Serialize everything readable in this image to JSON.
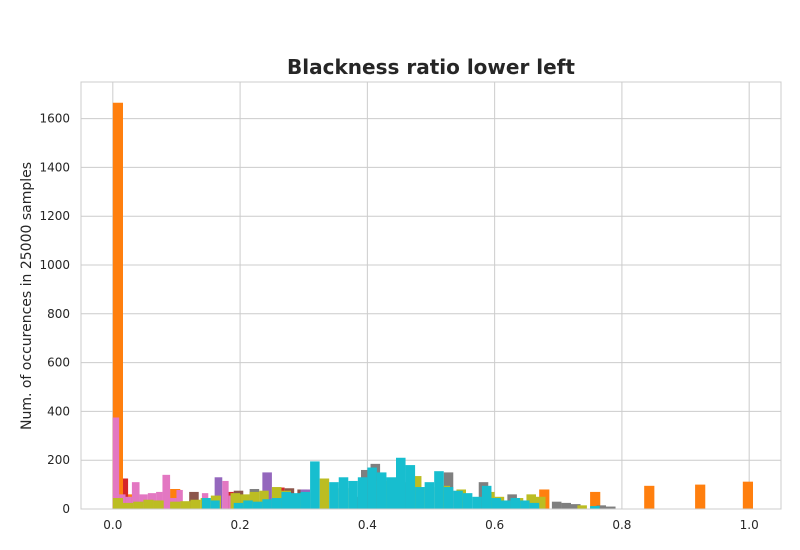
{
  "chart_data": {
    "type": "bar",
    "title": "Blackness ratio lower left",
    "xlabel": "",
    "ylabel": "Num. of occurences in 25000 samples",
    "xlim": [
      -0.05,
      1.05
    ],
    "ylim": [
      0,
      1750
    ],
    "x_ticks": [
      0.0,
      0.2,
      0.4,
      0.6,
      0.8,
      1.0
    ],
    "x_tick_labels": [
      "0.0",
      "0.2",
      "0.4",
      "0.6",
      "0.8",
      "1.0"
    ],
    "y_ticks": [
      0,
      200,
      400,
      600,
      800,
      1000,
      1200,
      1400,
      1600
    ],
    "y_tick_labels": [
      "0",
      "200",
      "400",
      "600",
      "800",
      "1000",
      "1200",
      "1400",
      "1600"
    ],
    "grid": true,
    "series": [
      {
        "name": "orange",
        "color": "#ff7f0e",
        "bins": [
          [
            0.0,
            0.016,
            1665
          ],
          [
            0.016,
            0.032,
            60
          ],
          [
            0.09,
            0.106,
            82
          ],
          [
            0.67,
            0.686,
            80
          ],
          [
            0.75,
            0.766,
            70
          ],
          [
            0.835,
            0.851,
            95
          ],
          [
            0.915,
            0.931,
            100
          ],
          [
            0.99,
            1.006,
            112
          ]
        ]
      },
      {
        "name": "red",
        "color": "#d62728",
        "bins": [
          [
            0.016,
            0.024,
            125
          ],
          [
            0.18,
            0.19,
            70
          ],
          [
            0.26,
            0.27,
            88
          ],
          [
            0.47,
            0.48,
            65
          ]
        ]
      },
      {
        "name": "brown",
        "color": "#8c564b",
        "bins": [
          [
            0.12,
            0.135,
            70
          ],
          [
            0.19,
            0.205,
            75
          ],
          [
            0.27,
            0.285,
            85
          ],
          [
            0.29,
            0.305,
            80
          ]
        ]
      },
      {
        "name": "purple",
        "color": "#9467bd",
        "bins": [
          [
            0.08,
            0.09,
            70
          ],
          [
            0.16,
            0.172,
            130
          ],
          [
            0.235,
            0.25,
            150
          ],
          [
            0.295,
            0.31,
            80
          ]
        ]
      },
      {
        "name": "gray",
        "color": "#7f7f7f",
        "bins": [
          [
            0.215,
            0.23,
            82
          ],
          [
            0.375,
            0.39,
            50
          ],
          [
            0.39,
            0.405,
            160
          ],
          [
            0.405,
            0.42,
            185
          ],
          [
            0.455,
            0.47,
            110
          ],
          [
            0.52,
            0.535,
            150
          ],
          [
            0.575,
            0.59,
            110
          ],
          [
            0.62,
            0.635,
            60
          ],
          [
            0.69,
            0.705,
            30
          ],
          [
            0.705,
            0.72,
            25
          ],
          [
            0.72,
            0.735,
            20
          ],
          [
            0.76,
            0.775,
            15
          ],
          [
            0.775,
            0.79,
            10
          ]
        ]
      },
      {
        "name": "pink",
        "color": "#e377c2",
        "bins": [
          [
            0.0,
            0.01,
            375
          ],
          [
            0.01,
            0.02,
            60
          ],
          [
            0.02,
            0.03,
            50
          ],
          [
            0.03,
            0.042,
            110
          ],
          [
            0.042,
            0.055,
            60
          ],
          [
            0.055,
            0.068,
            65
          ],
          [
            0.068,
            0.078,
            70
          ],
          [
            0.078,
            0.09,
            140
          ],
          [
            0.09,
            0.1,
            45
          ],
          [
            0.1,
            0.11,
            78
          ],
          [
            0.14,
            0.15,
            65
          ],
          [
            0.172,
            0.182,
            115
          ],
          [
            0.182,
            0.192,
            55
          ],
          [
            0.21,
            0.22,
            45
          ]
        ]
      },
      {
        "name": "olive",
        "color": "#bcbd22",
        "bins": [
          [
            0.0,
            0.016,
            45
          ],
          [
            0.016,
            0.032,
            25
          ],
          [
            0.032,
            0.048,
            30
          ],
          [
            0.048,
            0.064,
            38
          ],
          [
            0.064,
            0.08,
            35
          ],
          [
            0.09,
            0.106,
            30
          ],
          [
            0.106,
            0.122,
            32
          ],
          [
            0.122,
            0.138,
            38
          ],
          [
            0.138,
            0.154,
            45
          ],
          [
            0.154,
            0.17,
            55
          ],
          [
            0.185,
            0.2,
            65
          ],
          [
            0.2,
            0.215,
            60
          ],
          [
            0.215,
            0.23,
            70
          ],
          [
            0.23,
            0.245,
            75
          ],
          [
            0.25,
            0.265,
            90
          ],
          [
            0.265,
            0.28,
            75
          ],
          [
            0.28,
            0.295,
            60
          ],
          [
            0.295,
            0.31,
            65
          ],
          [
            0.325,
            0.34,
            125
          ],
          [
            0.355,
            0.37,
            85
          ],
          [
            0.415,
            0.43,
            115
          ],
          [
            0.44,
            0.455,
            90
          ],
          [
            0.47,
            0.485,
            135
          ],
          [
            0.49,
            0.505,
            90
          ],
          [
            0.515,
            0.53,
            95
          ],
          [
            0.54,
            0.555,
            80
          ],
          [
            0.585,
            0.6,
            70
          ],
          [
            0.6,
            0.615,
            50
          ],
          [
            0.63,
            0.645,
            45
          ],
          [
            0.65,
            0.665,
            60
          ],
          [
            0.665,
            0.68,
            50
          ],
          [
            0.73,
            0.745,
            15
          ]
        ]
      },
      {
        "name": "cyan",
        "color": "#17becf",
        "bins": [
          [
            0.14,
            0.154,
            45
          ],
          [
            0.154,
            0.168,
            35
          ],
          [
            0.19,
            0.205,
            25
          ],
          [
            0.205,
            0.22,
            35
          ],
          [
            0.22,
            0.235,
            30
          ],
          [
            0.235,
            0.25,
            40
          ],
          [
            0.25,
            0.265,
            45
          ],
          [
            0.265,
            0.28,
            70
          ],
          [
            0.28,
            0.295,
            65
          ],
          [
            0.295,
            0.31,
            70
          ],
          [
            0.31,
            0.325,
            195
          ],
          [
            0.34,
            0.355,
            110
          ],
          [
            0.355,
            0.37,
            130
          ],
          [
            0.37,
            0.385,
            115
          ],
          [
            0.385,
            0.4,
            130
          ],
          [
            0.4,
            0.415,
            170
          ],
          [
            0.415,
            0.43,
            150
          ],
          [
            0.43,
            0.445,
            130
          ],
          [
            0.445,
            0.46,
            210
          ],
          [
            0.46,
            0.475,
            180
          ],
          [
            0.475,
            0.49,
            90
          ],
          [
            0.49,
            0.505,
            110
          ],
          [
            0.505,
            0.52,
            155
          ],
          [
            0.52,
            0.535,
            90
          ],
          [
            0.535,
            0.55,
            75
          ],
          [
            0.55,
            0.565,
            65
          ],
          [
            0.565,
            0.58,
            50
          ],
          [
            0.58,
            0.595,
            95
          ],
          [
            0.595,
            0.61,
            45
          ],
          [
            0.61,
            0.625,
            35
          ],
          [
            0.625,
            0.64,
            45
          ],
          [
            0.64,
            0.655,
            35
          ],
          [
            0.655,
            0.67,
            25
          ],
          [
            0.75,
            0.765,
            12
          ]
        ]
      }
    ]
  }
}
